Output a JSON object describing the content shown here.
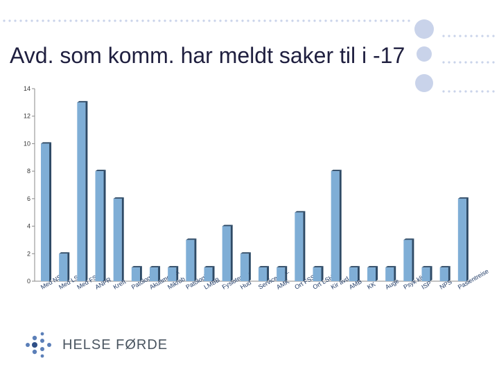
{
  "slide": {
    "title": "Avd. som komm. har meldt saker til i -17"
  },
  "logo": {
    "text": "HELSE FØRDE"
  },
  "colors": {
    "bar": "#7faed6",
    "bar_dark": "#2e4a66",
    "dots": "#c9d3ea",
    "logo_blue": "#5b7fb8"
  },
  "chart_data": {
    "type": "bar",
    "categories": [
      "Med NSH",
      "Med LSH",
      "Med FSS",
      "ANPR",
      "Kreft",
      "Patologi",
      "Akuttmottak",
      "Mikrob",
      "Patologi",
      "LMBB",
      "Fysioterapi",
      "Hud",
      "Servicesent.",
      "AMK",
      "Ort FSS",
      "Ort LSH",
      "Kir avd",
      "AMB",
      "KK",
      "Auge",
      "Psyk klin",
      "ISP",
      "NPS",
      "Pasientreise"
    ],
    "values": [
      10,
      2,
      13,
      8,
      6,
      1,
      1,
      1,
      3,
      1,
      4,
      2,
      1,
      1,
      5,
      1,
      8,
      1,
      1,
      1,
      3,
      1,
      1,
      6
    ],
    "yticks": [
      0,
      2,
      4,
      6,
      8,
      10,
      12,
      14
    ],
    "ylim": [
      0,
      14
    ],
    "grid": false,
    "legend": "none"
  }
}
